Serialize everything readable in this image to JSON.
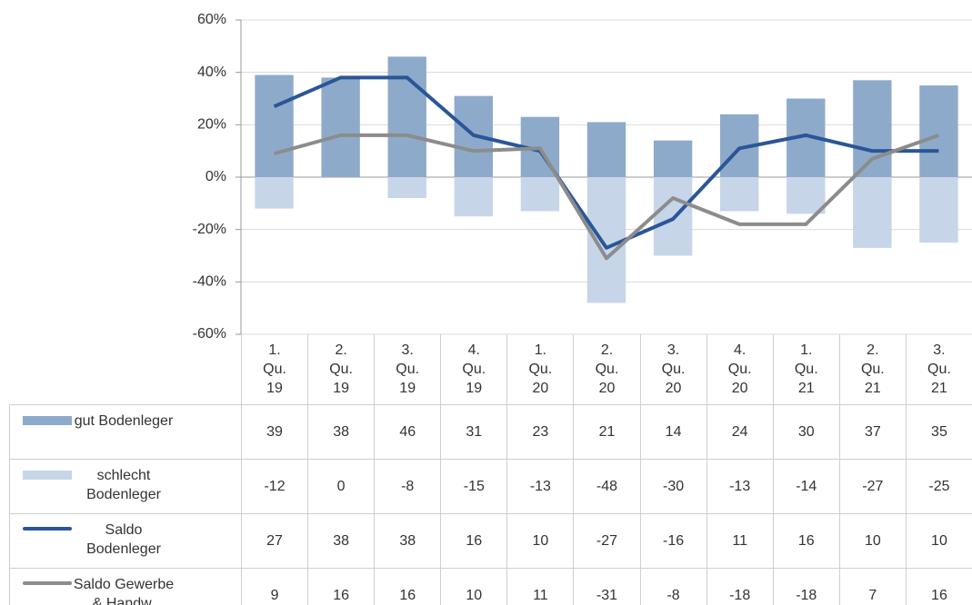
{
  "chart_data": {
    "type": "bar-line-table",
    "categories": [
      "1. Qu. 19",
      "2. Qu. 19",
      "3. Qu. 19",
      "4. Qu. 19",
      "1. Qu. 20",
      "2. Qu. 20",
      "3. Qu. 20",
      "4. Qu. 20",
      "1. Qu. 21",
      "2. Qu. 21",
      "3. Qu. 21"
    ],
    "series": [
      {
        "name": "gut Bodenleger",
        "kind": "bar",
        "color": "#8eaacb",
        "values": [
          39,
          38,
          46,
          31,
          23,
          21,
          14,
          24,
          30,
          37,
          35
        ]
      },
      {
        "name": "schlecht Bodenleger",
        "kind": "bar",
        "color": "#c7d5e8",
        "values": [
          -12,
          0,
          -8,
          -15,
          -13,
          -48,
          -30,
          -13,
          -14,
          -27,
          -25
        ]
      },
      {
        "name": "Saldo Bodenleger",
        "kind": "line",
        "color": "#2a5698",
        "values": [
          27,
          38,
          38,
          16,
          10,
          -27,
          -16,
          11,
          16,
          10,
          10
        ]
      },
      {
        "name": "Saldo Gewerbe & Handw.",
        "kind": "line",
        "color": "#8c8c8c",
        "values": [
          9,
          16,
          16,
          10,
          11,
          -31,
          -8,
          -18,
          -18,
          7,
          16
        ]
      }
    ],
    "ylim": [
      -60,
      60
    ],
    "yticks": [
      {
        "value": -60,
        "label": "-60%"
      },
      {
        "value": -40,
        "label": "-40%"
      },
      {
        "value": -20,
        "label": "-20%"
      },
      {
        "value": 0,
        "label": "0%"
      },
      {
        "value": 20,
        "label": "20%"
      },
      {
        "value": 40,
        "label": "40%"
      },
      {
        "value": 60,
        "label": "60%"
      }
    ],
    "grid": true
  }
}
